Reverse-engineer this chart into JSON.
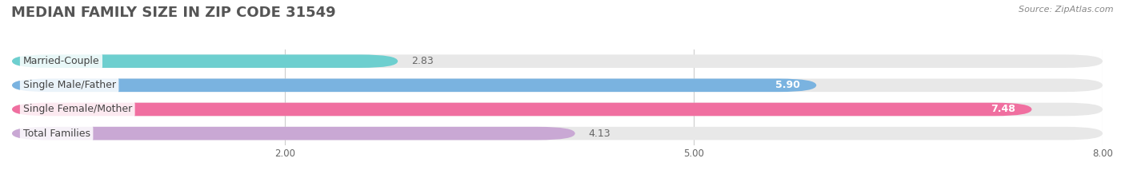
{
  "title": "MEDIAN FAMILY SIZE IN ZIP CODE 31549",
  "source": "Source: ZipAtlas.com",
  "categories": [
    "Married-Couple",
    "Single Male/Father",
    "Single Female/Mother",
    "Total Families"
  ],
  "values": [
    2.83,
    5.9,
    7.48,
    4.13
  ],
  "bar_colors": [
    "#6dcfcf",
    "#7ab3e0",
    "#f06fa0",
    "#c9a8d4"
  ],
  "bar_bg_color": "#e8e8e8",
  "background_color": "#ffffff",
  "xlim": [
    0,
    8.0
  ],
  "xticks": [
    2.0,
    5.0,
    8.0
  ],
  "label_fontsize": 9,
  "value_fontsize": 9,
  "title_fontsize": 13,
  "bar_height": 0.55
}
